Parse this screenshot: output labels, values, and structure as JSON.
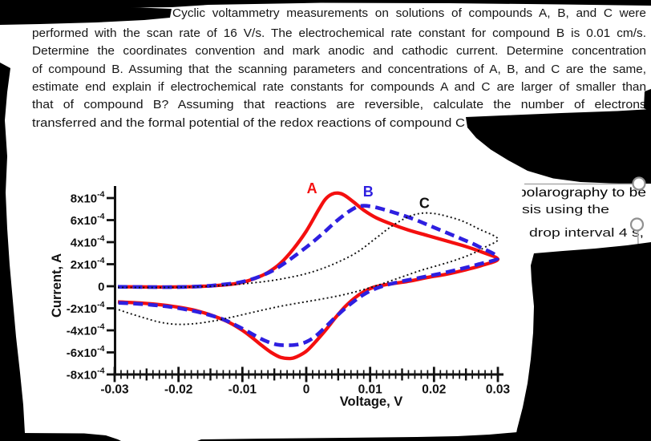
{
  "document": {
    "paragraph_lines": [
      "Cyclic voltammetry measurements on solutions of compounds A, B, and C were",
      "performed with the scan rate of 16 V/s. The electrochemical rate constant for compound B is 0.01 cm/s.",
      "Determine the coordinates convention and mark anodic and cathodic current. Determine concentration",
      "of compound B. Assuming that the scanning parameters and concentrations of A, B, and C are the same,",
      "estimate end explain if electrochemical rate constants for compounds A and C are larger of smaller than",
      "that of compound B? Assuming that reactions are reversible, calculate the number of electrons",
      "transferred and the formal potential of the redox reactions of compound C"
    ],
    "note_lines": [
      "polarography to be",
      "sis using the",
      "drop interval 4 s,"
    ]
  },
  "chart_data": {
    "type": "line",
    "subtype": "cyclic-voltammogram",
    "title": "",
    "xlabel": "Voltage, V",
    "ylabel": "Current, A",
    "xlim": [
      -0.03,
      0.03
    ],
    "ylim": [
      -0.0008,
      0.0008
    ],
    "current_unit_scale": 0.0001,
    "x_ticks": [
      -0.03,
      -0.02,
      -0.01,
      0,
      0.01,
      0.02,
      0.03
    ],
    "x_tick_labels": [
      "-0.03",
      "-0.02",
      "-0.01",
      "0",
      "0.01",
      "0.02",
      "0.03"
    ],
    "x_minor_tick_step": 0.001,
    "x_mid_tick_step": 0.005,
    "y_ticks": [
      8,
      6,
      4,
      2,
      0,
      -2,
      -4,
      -6,
      -8
    ],
    "y_tick_labels": [
      "8x10^-4",
      "6x10^-4",
      "4x10^-4",
      "2x10^-4",
      "0",
      "-2x10^-4",
      "-4x10^-4",
      "-6x10^-4",
      "-8x10^-4"
    ],
    "grid": false,
    "curve_labels": [
      {
        "text": "A",
        "color": "#f40f0f",
        "v": 0.0009,
        "i": 8.45
      },
      {
        "text": "B",
        "color": "#2e1fe0",
        "v": 0.0097,
        "i": 8.15
      },
      {
        "text": "C",
        "color": "#111111",
        "v": 0.0185,
        "i": 7.1
      }
    ],
    "series": [
      {
        "name": "A",
        "color": "#f40f0f",
        "stroke_width": 4.3,
        "dash": "",
        "points": [
          [
            -0.0295,
            -0.05
          ],
          [
            -0.026,
            -0.06
          ],
          [
            -0.022,
            -0.07
          ],
          [
            -0.018,
            -0.04
          ],
          [
            -0.015,
            0.03
          ],
          [
            -0.012,
            0.16
          ],
          [
            -0.01,
            0.36
          ],
          [
            -0.008,
            0.72
          ],
          [
            -0.006,
            1.25
          ],
          [
            -0.004,
            2.1
          ],
          [
            -0.002,
            3.4
          ],
          [
            0.0,
            5.0
          ],
          [
            0.002,
            7.0
          ],
          [
            0.003,
            7.9
          ],
          [
            0.004,
            8.35
          ],
          [
            0.005,
            8.45
          ],
          [
            0.006,
            8.25
          ],
          [
            0.0075,
            7.6
          ],
          [
            0.009,
            6.9
          ],
          [
            0.011,
            6.2
          ],
          [
            0.0135,
            5.6
          ],
          [
            0.016,
            5.1
          ],
          [
            0.019,
            4.6
          ],
          [
            0.022,
            4.1
          ],
          [
            0.025,
            3.6
          ],
          [
            0.0275,
            3.1
          ],
          [
            0.03,
            2.45
          ],
          [
            0.0275,
            1.9
          ],
          [
            0.025,
            1.5
          ],
          [
            0.022,
            1.1
          ],
          [
            0.019,
            0.8
          ],
          [
            0.016,
            0.45
          ],
          [
            0.013,
            0.2
          ],
          [
            0.0105,
            -0.1
          ],
          [
            0.009,
            -0.5
          ],
          [
            0.0075,
            -1.1
          ],
          [
            0.006,
            -1.9
          ],
          [
            0.0045,
            -2.9
          ],
          [
            0.003,
            -4.0
          ],
          [
            0.0015,
            -5.0
          ],
          [
            0.0,
            -5.9
          ],
          [
            -0.0015,
            -6.4
          ],
          [
            -0.0025,
            -6.55
          ],
          [
            -0.004,
            -6.45
          ],
          [
            -0.0055,
            -6.0
          ],
          [
            -0.007,
            -5.35
          ],
          [
            -0.0085,
            -4.65
          ],
          [
            -0.01,
            -4.0
          ],
          [
            -0.012,
            -3.3
          ],
          [
            -0.0145,
            -2.7
          ],
          [
            -0.017,
            -2.25
          ],
          [
            -0.0195,
            -1.95
          ],
          [
            -0.0225,
            -1.7
          ],
          [
            -0.026,
            -1.52
          ],
          [
            -0.0295,
            -1.42
          ]
        ]
      },
      {
        "name": "B",
        "color": "#2e1fe0",
        "stroke_width": 4.6,
        "dash": "12 6.5",
        "points": [
          [
            -0.0295,
            -0.05
          ],
          [
            -0.025,
            -0.07
          ],
          [
            -0.021,
            -0.08
          ],
          [
            -0.017,
            -0.02
          ],
          [
            -0.014,
            0.1
          ],
          [
            -0.011,
            0.3
          ],
          [
            -0.009,
            0.55
          ],
          [
            -0.007,
            0.95
          ],
          [
            -0.005,
            1.5
          ],
          [
            -0.003,
            2.25
          ],
          [
            -0.001,
            3.1
          ],
          [
            0.001,
            4.0
          ],
          [
            0.003,
            5.0
          ],
          [
            0.0045,
            5.8
          ],
          [
            0.006,
            6.5
          ],
          [
            0.007,
            6.9
          ],
          [
            0.008,
            7.2
          ],
          [
            0.009,
            7.3
          ],
          [
            0.0105,
            7.2
          ],
          [
            0.0125,
            6.9
          ],
          [
            0.0145,
            6.55
          ],
          [
            0.017,
            6.05
          ],
          [
            0.0195,
            5.45
          ],
          [
            0.022,
            4.85
          ],
          [
            0.0245,
            4.25
          ],
          [
            0.027,
            3.6
          ],
          [
            0.03,
            2.6
          ],
          [
            0.027,
            2.0
          ],
          [
            0.024,
            1.55
          ],
          [
            0.021,
            1.15
          ],
          [
            0.018,
            0.8
          ],
          [
            0.015,
            0.45
          ],
          [
            0.0125,
            0.1
          ],
          [
            0.0105,
            -0.3
          ],
          [
            0.009,
            -0.75
          ],
          [
            0.0075,
            -1.35
          ],
          [
            0.006,
            -2.05
          ],
          [
            0.0045,
            -2.85
          ],
          [
            0.003,
            -3.7
          ],
          [
            0.0015,
            -4.5
          ],
          [
            0.0,
            -5.05
          ],
          [
            -0.0015,
            -5.3
          ],
          [
            -0.003,
            -5.35
          ],
          [
            -0.0045,
            -5.3
          ],
          [
            -0.006,
            -5.05
          ],
          [
            -0.0075,
            -4.65
          ],
          [
            -0.009,
            -4.15
          ],
          [
            -0.011,
            -3.55
          ],
          [
            -0.013,
            -3.0
          ],
          [
            -0.0155,
            -2.55
          ],
          [
            -0.018,
            -2.2
          ],
          [
            -0.021,
            -1.9
          ],
          [
            -0.024,
            -1.7
          ],
          [
            -0.027,
            -1.57
          ],
          [
            -0.0295,
            -1.5
          ]
        ]
      },
      {
        "name": "C",
        "color": "#111111",
        "stroke_width": 1.9,
        "dash": "2 3.2",
        "points": [
          [
            -0.0295,
            -0.1
          ],
          [
            -0.025,
            -0.12
          ],
          [
            -0.021,
            -0.1
          ],
          [
            -0.017,
            -0.05
          ],
          [
            -0.013,
            0.07
          ],
          [
            -0.009,
            0.27
          ],
          [
            -0.005,
            0.55
          ],
          [
            -0.001,
            1.0
          ],
          [
            0.002,
            1.5
          ],
          [
            0.005,
            2.2
          ],
          [
            0.008,
            3.1
          ],
          [
            0.011,
            4.4
          ],
          [
            0.0135,
            5.5
          ],
          [
            0.016,
            6.3
          ],
          [
            0.018,
            6.62
          ],
          [
            0.02,
            6.6
          ],
          [
            0.022,
            6.35
          ],
          [
            0.0245,
            5.9
          ],
          [
            0.027,
            5.2
          ],
          [
            0.03,
            4.3
          ],
          [
            0.028,
            3.55
          ],
          [
            0.026,
            2.95
          ],
          [
            0.0235,
            2.4
          ],
          [
            0.021,
            1.95
          ],
          [
            0.018,
            1.45
          ],
          [
            0.015,
            0.85
          ],
          [
            0.012,
            0.25
          ],
          [
            0.009,
            -0.3
          ],
          [
            0.006,
            -0.75
          ],
          [
            0.003,
            -1.1
          ],
          [
            0.0,
            -1.4
          ],
          [
            -0.003,
            -1.7
          ],
          [
            -0.006,
            -2.05
          ],
          [
            -0.009,
            -2.45
          ],
          [
            -0.012,
            -2.85
          ],
          [
            -0.015,
            -3.2
          ],
          [
            -0.018,
            -3.42
          ],
          [
            -0.0205,
            -3.45
          ],
          [
            -0.023,
            -3.25
          ],
          [
            -0.0255,
            -2.85
          ],
          [
            -0.028,
            -2.4
          ],
          [
            -0.0295,
            -2.1
          ]
        ]
      }
    ]
  }
}
